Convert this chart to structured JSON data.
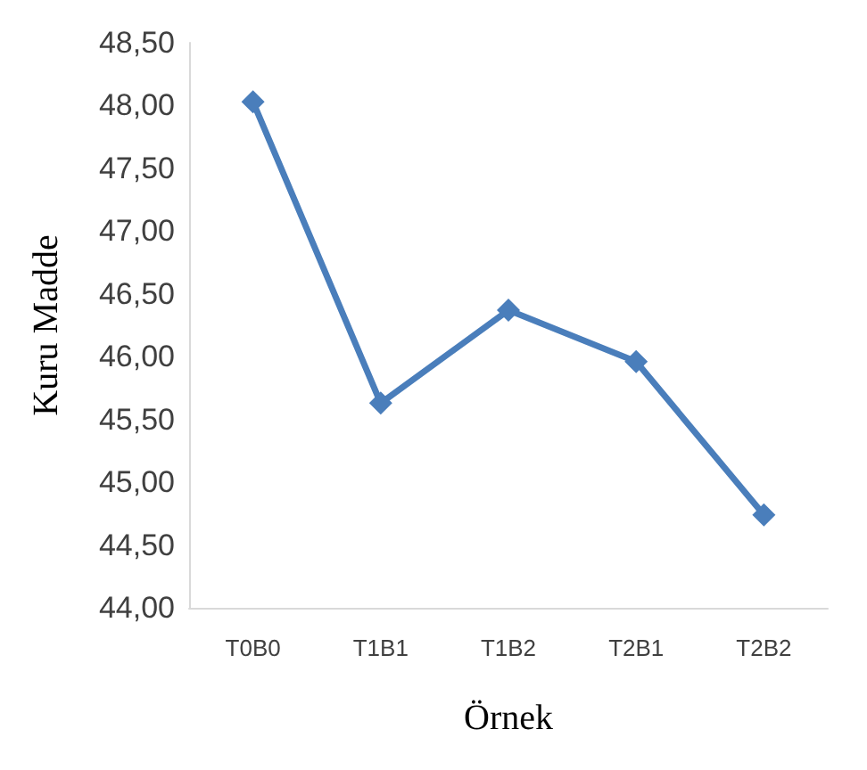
{
  "chart_data": {
    "type": "line",
    "xlabel": "Örnek",
    "ylabel": "Kuru Madde",
    "categories": [
      "T0B0",
      "T1B1",
      "T1B2",
      "T2B1",
      "T2B2"
    ],
    "series": [
      {
        "color": "#4a7ebb",
        "values": [
          48.03,
          45.63,
          46.37,
          45.96,
          44.74
        ]
      }
    ],
    "ylim": [
      44,
      48.5
    ],
    "yticks": [
      {
        "value": 44,
        "label": "44,00"
      },
      {
        "value": 44.5,
        "label": "44,50"
      },
      {
        "value": 45,
        "label": "45,00"
      },
      {
        "value": 45.5,
        "label": "45,50"
      },
      {
        "value": 46,
        "label": "46,00"
      },
      {
        "value": 46.5,
        "label": "46,50"
      },
      {
        "value": 47,
        "label": "47,00"
      },
      {
        "value": 47.5,
        "label": "47,50"
      },
      {
        "value": 48,
        "label": "48,00"
      },
      {
        "value": 48.5,
        "label": "48,50"
      }
    ],
    "grid": false,
    "marker": "diamond",
    "line_style": "solid"
  }
}
